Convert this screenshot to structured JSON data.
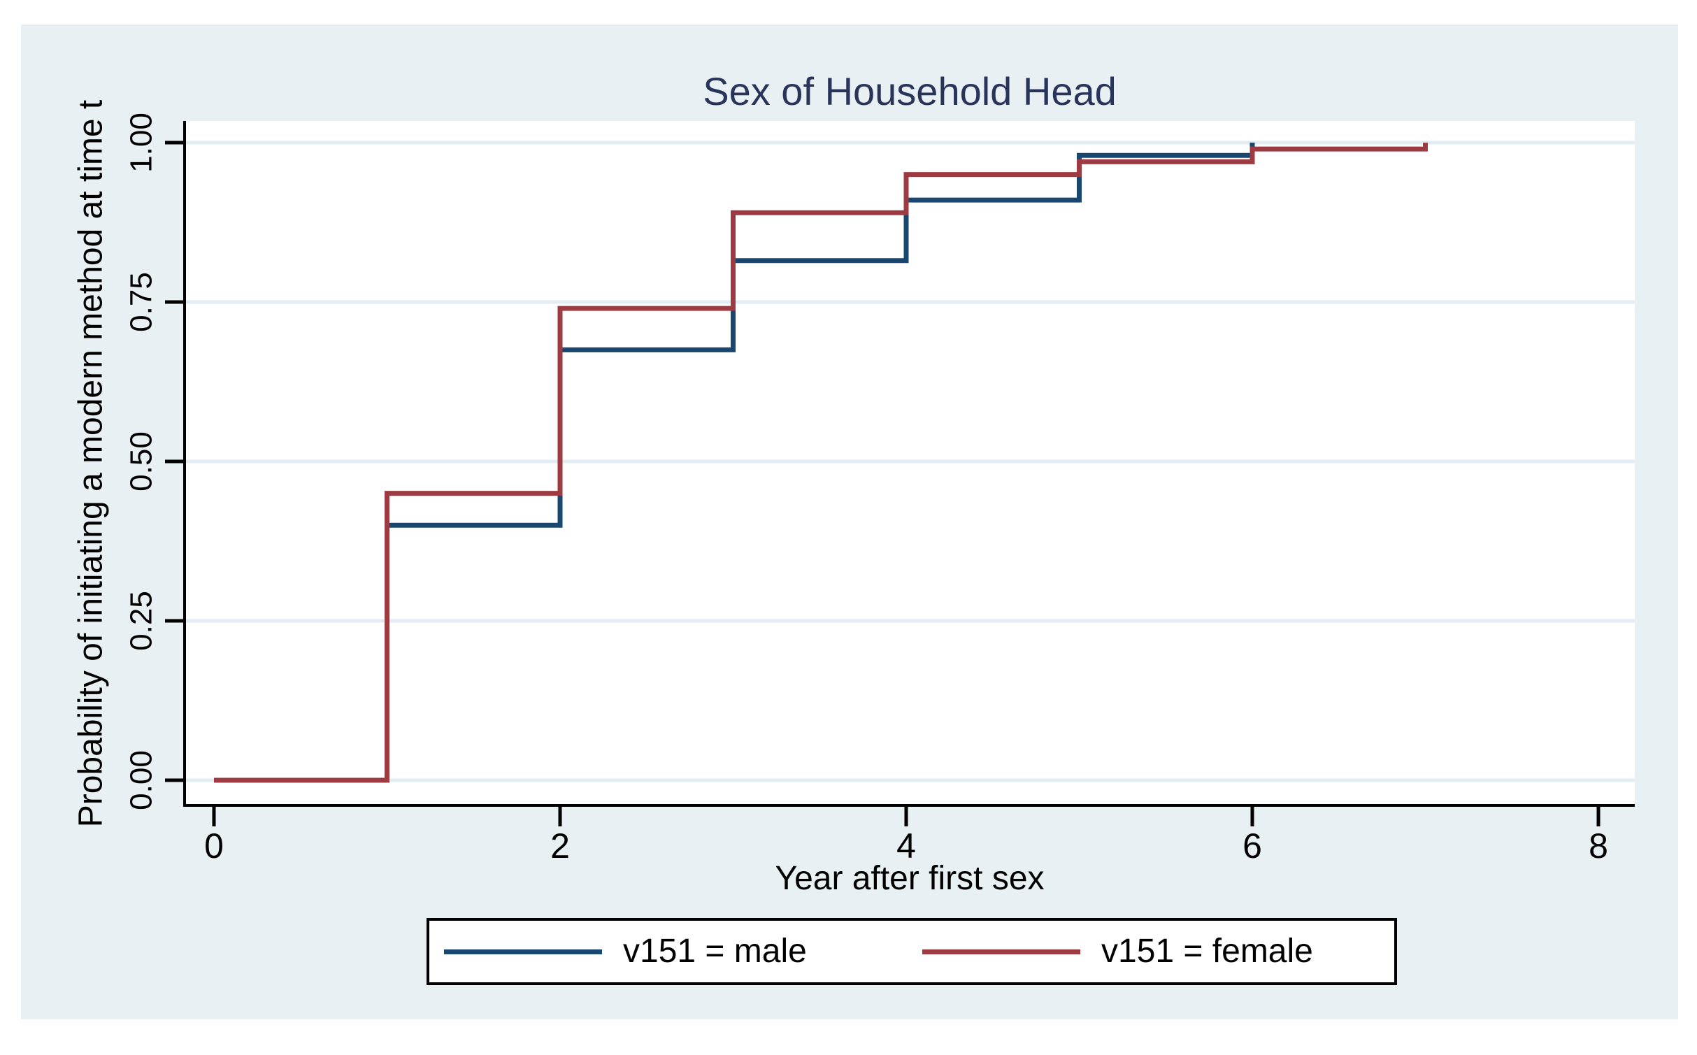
{
  "figure": {
    "title": "Sex of Household Head"
  },
  "axes": {
    "x": {
      "title": "Year after first sex",
      "tick_values": [
        0,
        2,
        4,
        6,
        8
      ],
      "tick_labels": [
        "0",
        "2",
        "4",
        "6",
        "8"
      ]
    },
    "y": {
      "title": "Probability of initiating a modern method at time t",
      "tick_values": [
        0,
        0.25,
        0.5,
        0.75,
        1
      ],
      "tick_labels": [
        "0.00",
        "0.25",
        "0.50",
        "0.75",
        "1.00"
      ]
    }
  },
  "legend": {
    "entries": [
      {
        "label": "v151 = male",
        "color": "#1A476F"
      },
      {
        "label": "v151 = female",
        "color": "#9D3B43"
      }
    ]
  },
  "colors": {
    "graph_background": "#E9F0F4",
    "plot_background": "#FFFFFF",
    "gridline": "#E2EDF3",
    "axis": "#000000",
    "title_text": "#28345A",
    "male_line": "#1A476F",
    "female_line": "#9D3B43"
  },
  "chart_data": {
    "type": "line",
    "subtype": "step",
    "title": "Sex of Household Head",
    "xlabel": "Year after first sex",
    "ylabel": "Probability of initiating a modern method at time t",
    "xlim": [
      0,
      8.2
    ],
    "ylim": [
      0,
      1
    ],
    "x_ticks": [
      0,
      2,
      4,
      6,
      8
    ],
    "y_ticks": [
      0,
      0.25,
      0.5,
      0.75,
      1
    ],
    "grid": "horizontal-only",
    "legend_position": "bottom-center",
    "series": [
      {
        "name": "v151 = male",
        "color": "#1A476F",
        "points": [
          [
            0,
            0
          ],
          [
            1,
            0
          ],
          [
            1,
            0.4
          ],
          [
            2,
            0.4
          ],
          [
            2,
            0.675
          ],
          [
            3,
            0.675
          ],
          [
            3,
            0.815
          ],
          [
            4,
            0.815
          ],
          [
            4,
            0.91
          ],
          [
            5,
            0.91
          ],
          [
            5,
            0.98
          ],
          [
            6,
            0.98
          ],
          [
            6,
            1.0
          ]
        ]
      },
      {
        "name": "v151 = female",
        "color": "#9D3B43",
        "points": [
          [
            0,
            0
          ],
          [
            1,
            0
          ],
          [
            1,
            0.45
          ],
          [
            2,
            0.45
          ],
          [
            2,
            0.74
          ],
          [
            3,
            0.74
          ],
          [
            3,
            0.89
          ],
          [
            4,
            0.89
          ],
          [
            4,
            0.95
          ],
          [
            5,
            0.95
          ],
          [
            5,
            0.97
          ],
          [
            6,
            0.97
          ],
          [
            6,
            0.99
          ],
          [
            7,
            0.99
          ],
          [
            7,
            1.0
          ]
        ]
      }
    ]
  }
}
